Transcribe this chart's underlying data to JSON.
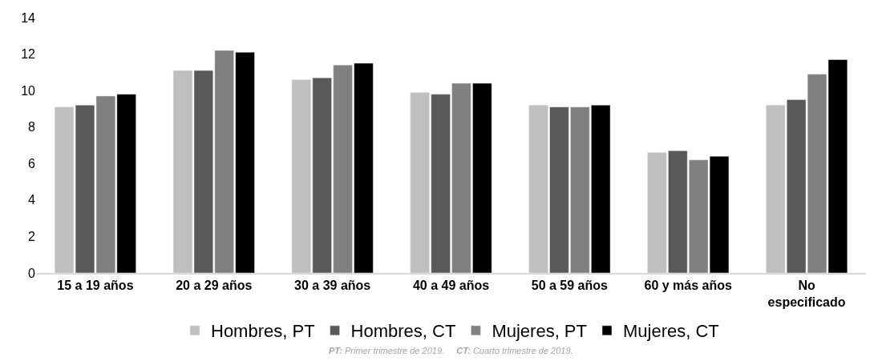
{
  "chart_data": {
    "type": "bar",
    "categories": [
      "15 a 19 años",
      "20 a 29 años",
      "30 a 39 años",
      "40 a 49 años",
      "50 a 59 años",
      "60 y más años",
      "No especificado"
    ],
    "series": [
      {
        "name": "Hombres, PT",
        "color": "#bfbfbf",
        "values": [
          9.1,
          11.1,
          10.6,
          9.9,
          9.2,
          6.6,
          9.2
        ]
      },
      {
        "name": "Hombres, CT",
        "color": "#595959",
        "values": [
          9.2,
          11.1,
          10.7,
          9.8,
          9.1,
          6.7,
          9.5
        ]
      },
      {
        "name": "Mujeres, PT",
        "color": "#808080",
        "values": [
          9.7,
          12.2,
          11.4,
          10.4,
          9.1,
          6.2,
          10.9
        ]
      },
      {
        "name": "Mujeres, CT",
        "color": "#000000",
        "values": [
          9.8,
          12.1,
          11.5,
          10.4,
          9.2,
          6.4,
          11.7
        ]
      }
    ],
    "ylim": [
      0,
      14
    ],
    "yticks": [
      0,
      2,
      4,
      6,
      8,
      10,
      12,
      14
    ],
    "legend": "bottom",
    "annotations": [
      "PT: Primer trimestre de 2019.     CT: Cuarto trimestre de 2019."
    ]
  }
}
